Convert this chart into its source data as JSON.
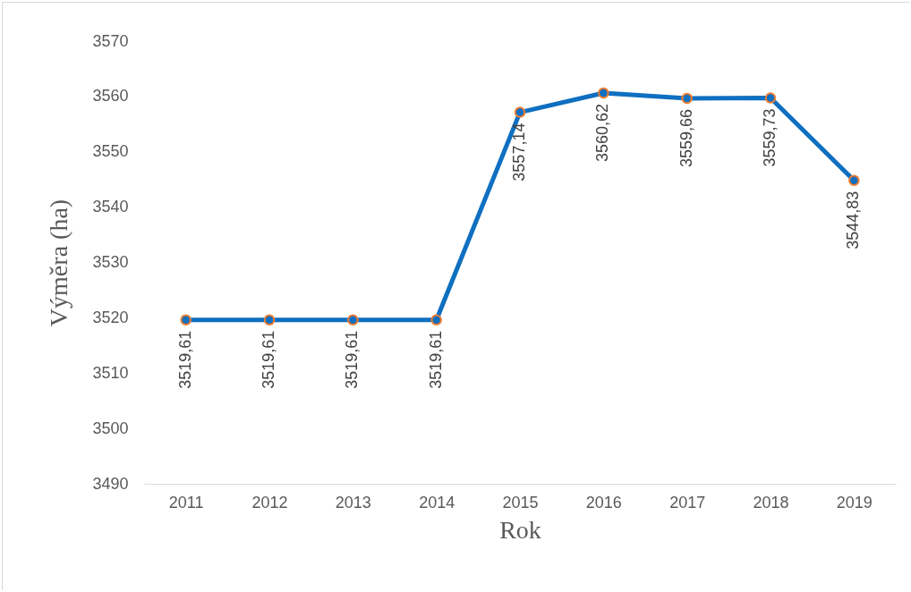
{
  "chart_data": {
    "type": "line",
    "xlabel": "Rok",
    "ylabel": "Výměra (ha)",
    "categories": [
      "2011",
      "2012",
      "2013",
      "2014",
      "2015",
      "2016",
      "2017",
      "2018",
      "2019"
    ],
    "series": [
      {
        "color": "#0f6fc0",
        "values": [
          3519.61,
          3519.61,
          3519.61,
          3519.61,
          3557.14,
          3560.62,
          3559.66,
          3559.73,
          3544.83
        ],
        "value_labels": [
          "3519,61",
          "3519,61",
          "3519,61",
          "3519,61",
          "3557,14",
          "3560,62",
          "3559,66",
          "3559,73",
          "3544,83"
        ]
      }
    ],
    "ylim": [
      3490,
      3570
    ],
    "yticks": [
      3490,
      3500,
      3510,
      3520,
      3530,
      3540,
      3550,
      3560,
      3570
    ],
    "grid": false,
    "marker": "circle",
    "line_style": "solid"
  }
}
